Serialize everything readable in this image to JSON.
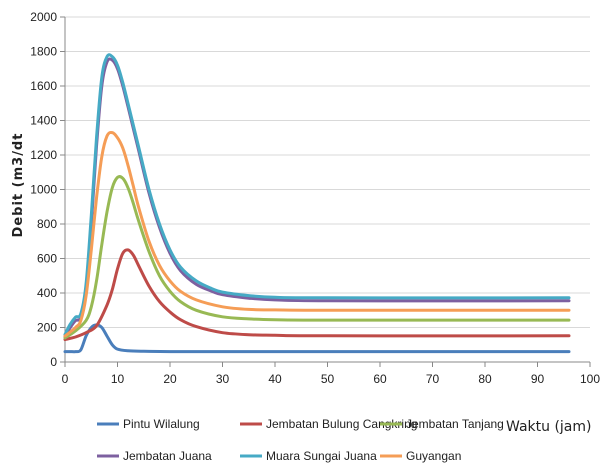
{
  "chart_data": {
    "type": "line",
    "title": "",
    "xlabel": "Waktu (jam)",
    "ylabel": "Debit  (m3/dt",
    "xlim": [
      0,
      100
    ],
    "ylim": [
      0,
      2000
    ],
    "xticks": [
      0,
      10,
      20,
      30,
      40,
      50,
      60,
      70,
      80,
      90,
      100
    ],
    "yticks": [
      0,
      200,
      400,
      600,
      800,
      1000,
      1200,
      1400,
      1600,
      1800,
      2000
    ],
    "grid": "horizontal",
    "legend": "bottom",
    "series": [
      {
        "name": "Pintu Wilalung",
        "color": "#4a7ebb",
        "x": [
          0,
          1,
          2,
          3,
          4,
          5,
          6,
          7,
          8,
          9,
          10,
          12,
          15,
          20,
          30,
          50,
          96
        ],
        "y": [
          60,
          60,
          60,
          70,
          150,
          200,
          215,
          200,
          150,
          100,
          75,
          65,
          62,
          60,
          60,
          60,
          60
        ]
      },
      {
        "name": "Jembatan Bulung Cangkring",
        "color": "#be4b48",
        "x": [
          0,
          2,
          4,
          6,
          8,
          9,
          10,
          11,
          12,
          13,
          14,
          16,
          18,
          20,
          22,
          25,
          30,
          35,
          40,
          50,
          96
        ],
        "y": [
          130,
          145,
          170,
          210,
          330,
          420,
          540,
          630,
          650,
          620,
          560,
          440,
          350,
          290,
          245,
          205,
          170,
          158,
          155,
          152,
          152
        ]
      },
      {
        "name": "Jembatan Tanjang",
        "color": "#98b954",
        "x": [
          0,
          2,
          4,
          5,
          6,
          7,
          8,
          9,
          10,
          11,
          12,
          13,
          14,
          16,
          18,
          20,
          22,
          25,
          30,
          35,
          40,
          50,
          96
        ],
        "y": [
          140,
          180,
          240,
          320,
          470,
          680,
          870,
          1010,
          1070,
          1065,
          1010,
          920,
          820,
          640,
          500,
          410,
          350,
          300,
          262,
          250,
          245,
          243,
          243
        ]
      },
      {
        "name": "Jembatan Juana",
        "color": "#7d60a0",
        "x": [
          0,
          1,
          2,
          3,
          4,
          5,
          6,
          7,
          8,
          9,
          10,
          11,
          12,
          14,
          16,
          18,
          20,
          22,
          25,
          28,
          30,
          35,
          40,
          50,
          96
        ],
        "y": [
          150,
          200,
          240,
          260,
          420,
          800,
          1250,
          1600,
          1740,
          1750,
          1700,
          1600,
          1480,
          1230,
          980,
          780,
          630,
          530,
          450,
          410,
          390,
          370,
          360,
          355,
          355
        ]
      },
      {
        "name": "Muara Sungai Juana",
        "color": "#46aac5",
        "x": [
          0,
          1,
          2,
          3,
          4,
          5,
          6,
          7,
          8,
          9,
          10,
          11,
          12,
          14,
          16,
          18,
          20,
          22,
          25,
          28,
          30,
          35,
          40,
          50,
          96
        ],
        "y": [
          160,
          220,
          260,
          280,
          450,
          850,
          1300,
          1650,
          1770,
          1770,
          1720,
          1620,
          1500,
          1250,
          1000,
          800,
          650,
          550,
          470,
          425,
          405,
          385,
          375,
          372,
          372
        ]
      },
      {
        "name": "Guyangan",
        "color": "#f59d56",
        "x": [
          0,
          2,
          3,
          4,
          5,
          6,
          7,
          8,
          9,
          10,
          11,
          12,
          13,
          14,
          16,
          18,
          20,
          22,
          25,
          30,
          35,
          40,
          50,
          96
        ],
        "y": [
          150,
          200,
          240,
          380,
          650,
          950,
          1190,
          1310,
          1330,
          1300,
          1240,
          1140,
          1020,
          900,
          700,
          560,
          470,
          410,
          360,
          320,
          305,
          302,
          300,
          300
        ]
      }
    ]
  }
}
